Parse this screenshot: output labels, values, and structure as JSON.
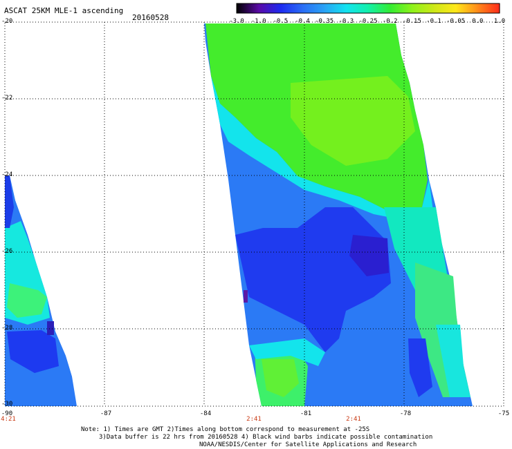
{
  "header": {
    "title": "ASCAT 25KM MLE-1 ascending",
    "date": "20160528"
  },
  "colorbar": {
    "ticks": [
      "-3.0",
      "-1.0",
      "-0.5",
      "-0.4",
      "-0.35",
      "-0.3",
      "-0.25",
      "-0.2",
      "-0.15",
      "-0.1",
      "-0.05",
      "0.0",
      "1.0"
    ],
    "colors": [
      "#000000",
      "#5a0aa6",
      "#1d2af0",
      "#2a6df5",
      "#2aa2f5",
      "#13e3f0",
      "#12f0aa",
      "#33ec33",
      "#8ef21a",
      "#cde818",
      "#ffe81a",
      "#ff8a1a",
      "#ff2a1a"
    ]
  },
  "map": {
    "lat_labels": [
      "-20",
      "-22",
      "-24",
      "-26",
      "-28",
      "-30"
    ],
    "lon_labels": [
      "-90",
      "-87",
      "-84",
      "-81",
      "-78",
      "-75"
    ],
    "time_labels": [
      {
        "text": "4:21",
        "lon": "-90"
      },
      {
        "text": "2:41",
        "lon": "-82.5"
      },
      {
        "text": "2:41",
        "lon": "-79.5"
      }
    ]
  },
  "notes": {
    "line1": "Note: 1) Times are GMT 2)Times along bottom correspond to measurement at -25S",
    "line2": "3)Data buffer is 22 hrs from 20160528 4) Black wind barbs indicate possible contamination",
    "line3": "NOAA/NESDIS/Center for Satellite Applications and Research"
  }
}
